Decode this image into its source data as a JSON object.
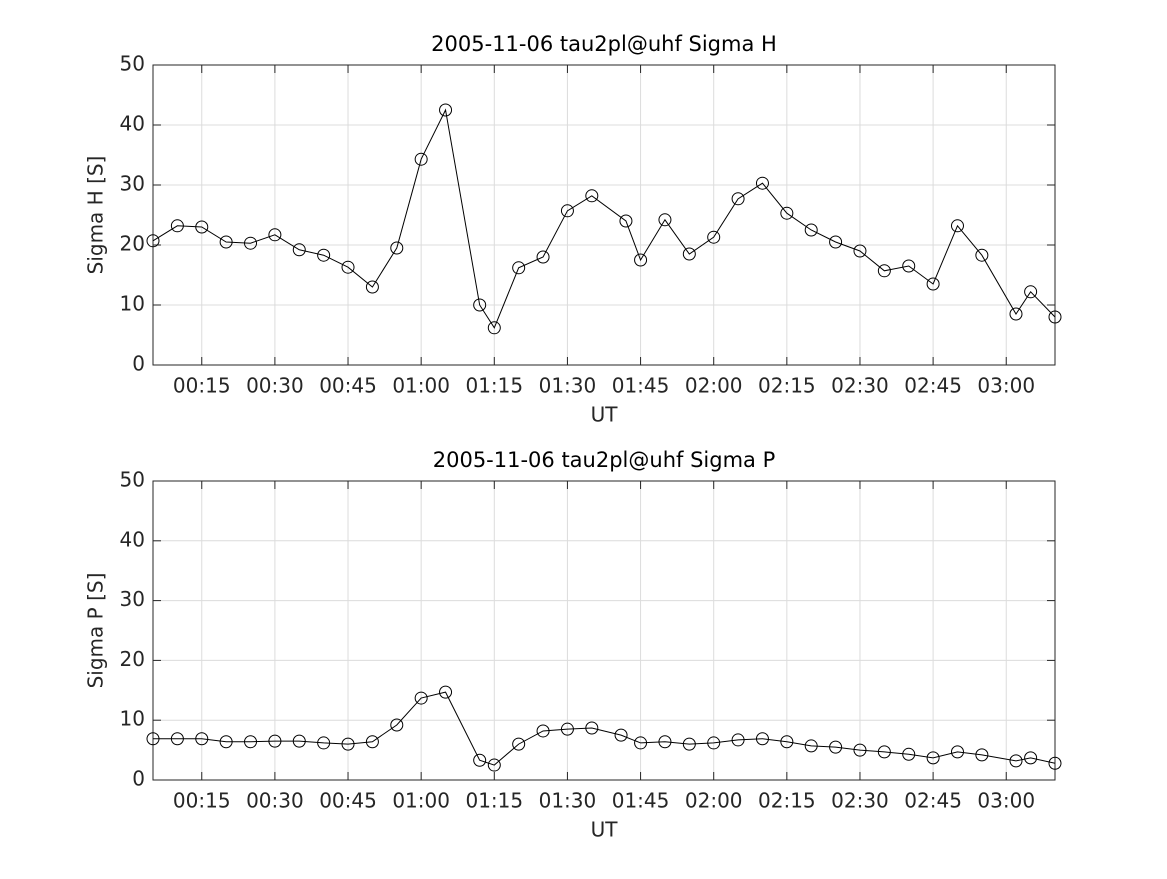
{
  "chart_data": [
    {
      "type": "line",
      "title": "2005-11-06  tau2pl@uhf Sigma H",
      "xlabel": "UT",
      "ylabel": "Sigma H [S]",
      "x": [
        "00:05",
        "00:10",
        "00:15",
        "00:20",
        "00:25",
        "00:30",
        "00:35",
        "00:40",
        "00:45",
        "00:50",
        "00:55",
        "01:00",
        "01:05",
        "01:12",
        "01:15",
        "01:20",
        "01:25",
        "01:30",
        "01:35",
        "01:42",
        "01:45",
        "01:50",
        "01:55",
        "02:00",
        "02:05",
        "02:10",
        "02:15",
        "02:20",
        "02:25",
        "02:30",
        "02:35",
        "02:40",
        "02:45",
        "02:50",
        "02:55",
        "03:02",
        "03:05",
        "03:10"
      ],
      "values": [
        20.7,
        23.2,
        23.0,
        20.5,
        20.3,
        21.7,
        19.2,
        18.3,
        16.3,
        13.0,
        19.5,
        34.3,
        42.5,
        10.0,
        6.2,
        16.2,
        18.0,
        25.7,
        28.2,
        24.0,
        17.5,
        24.2,
        18.5,
        21.3,
        27.7,
        30.3,
        25.3,
        22.5,
        20.5,
        19.0,
        15.7,
        16.5,
        13.5,
        23.2,
        18.3,
        8.5,
        12.2,
        8.0
      ],
      "color": "#000000",
      "marker": "circle",
      "xlim": [
        "00:05",
        "03:10"
      ],
      "xticks": [
        "00:15",
        "00:30",
        "00:45",
        "01:00",
        "01:15",
        "01:30",
        "01:45",
        "02:00",
        "02:15",
        "02:30",
        "02:45",
        "03:00"
      ],
      "ylim": [
        0,
        50
      ],
      "yticks": [
        0,
        10,
        20,
        30,
        40,
        50
      ],
      "grid": true
    },
    {
      "type": "line",
      "title": "2005-11-06  tau2pl@uhf Sigma P",
      "xlabel": "UT",
      "ylabel": "Sigma P [S]",
      "x": [
        "00:05",
        "00:10",
        "00:15",
        "00:20",
        "00:25",
        "00:30",
        "00:35",
        "00:40",
        "00:45",
        "00:50",
        "00:55",
        "01:00",
        "01:05",
        "01:12",
        "01:15",
        "01:20",
        "01:25",
        "01:30",
        "01:35",
        "01:41",
        "01:45",
        "01:50",
        "01:55",
        "02:00",
        "02:05",
        "02:10",
        "02:15",
        "02:20",
        "02:25",
        "02:30",
        "02:35",
        "02:40",
        "02:45",
        "02:50",
        "02:55",
        "03:02",
        "03:05",
        "03:10"
      ],
      "values": [
        6.9,
        6.9,
        6.9,
        6.4,
        6.4,
        6.5,
        6.5,
        6.2,
        6.0,
        6.4,
        9.2,
        13.7,
        14.7,
        3.3,
        2.5,
        6.0,
        8.2,
        8.5,
        8.7,
        7.5,
        6.2,
        6.4,
        6.0,
        6.2,
        6.7,
        6.9,
        6.4,
        5.7,
        5.5,
        5.0,
        4.7,
        4.3,
        3.7,
        4.7,
        4.2,
        3.2,
        3.7,
        2.8
      ],
      "color": "#000000",
      "marker": "circle",
      "xlim": [
        "00:05",
        "03:10"
      ],
      "xticks": [
        "00:15",
        "00:30",
        "00:45",
        "01:00",
        "01:15",
        "01:30",
        "01:45",
        "02:00",
        "02:15",
        "02:30",
        "02:45",
        "03:00"
      ],
      "ylim": [
        0,
        50
      ],
      "yticks": [
        0,
        10,
        20,
        30,
        40,
        50
      ],
      "grid": true
    }
  ]
}
